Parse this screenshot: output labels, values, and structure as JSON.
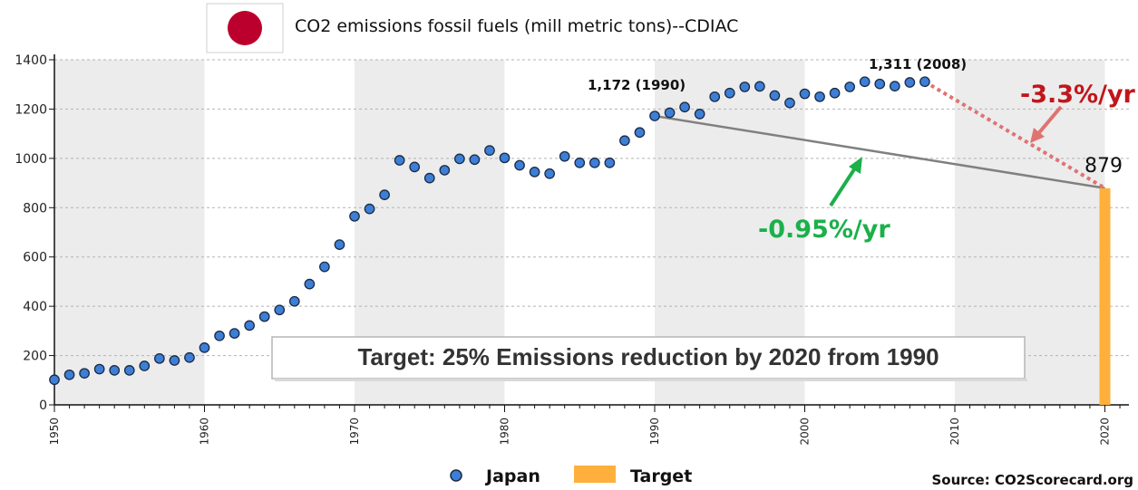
{
  "title": "CO2 emissions fossil fuels (mill metric tons)--CDIAC",
  "source": "Source: CO2Scorecard.org",
  "target_box": "Target: 25% Emissions reduction by 2020 from 1990",
  "annotations": {
    "peak_1990": "1,172 (1990)",
    "peak_2008": "1,311 (2008)",
    "target_value": "879",
    "rate_red": "-3.3%/yr",
    "rate_green": "-0.95%/yr"
  },
  "colors": {
    "flag_red": "#bc002d",
    "japan_point": "#3d7fd6",
    "target_bar": "#ffaf3c",
    "red_line": "#e07272",
    "gray_line": "#808080",
    "green_arrow": "#1bb04a",
    "red_text": "#c0161c",
    "band": "#ececec"
  },
  "icons": {
    "flag": "japan-flag-icon"
  },
  "chart_data": {
    "type": "scatter",
    "xlim": [
      1950,
      2021
    ],
    "ylim": [
      0,
      1400
    ],
    "yticks": [
      "0",
      "200",
      "400",
      "600",
      "800",
      "1000",
      "1200",
      "1400"
    ],
    "xticks": [
      "1950",
      "1960",
      "1970",
      "1980",
      "1990",
      "2000",
      "2010",
      "2020"
    ],
    "grid": "horizontal dashed",
    "legend": "bottom-center",
    "series": [
      {
        "name": "Japan",
        "x": [
          1950,
          1951,
          1952,
          1953,
          1954,
          1955,
          1956,
          1957,
          1958,
          1959,
          1960,
          1961,
          1962,
          1963,
          1964,
          1965,
          1966,
          1967,
          1968,
          1969,
          1970,
          1971,
          1972,
          1973,
          1974,
          1975,
          1976,
          1977,
          1978,
          1979,
          1980,
          1981,
          1982,
          1983,
          1984,
          1985,
          1986,
          1987,
          1988,
          1989,
          1990,
          1991,
          1992,
          1993,
          1994,
          1995,
          1996,
          1997,
          1998,
          1999,
          2000,
          2001,
          2002,
          2003,
          2004,
          2005,
          2006,
          2007,
          2008
        ],
        "y": [
          102,
          122,
          128,
          145,
          140,
          140,
          158,
          188,
          180,
          192,
          232,
          280,
          290,
          322,
          358,
          385,
          420,
          490,
          560,
          650,
          765,
          795,
          852,
          992,
          965,
          920,
          952,
          998,
          995,
          1032,
          1002,
          972,
          945,
          938,
          1008,
          982,
          982,
          982,
          1072,
          1105,
          1172,
          1185,
          1208,
          1180,
          1250,
          1265,
          1290,
          1292,
          1255,
          1225,
          1262,
          1250,
          1265,
          1290,
          1311,
          1302,
          1293,
          1308,
          1311
        ]
      },
      {
        "name": "Target",
        "x": [
          2020
        ],
        "y": [
          879
        ]
      }
    ],
    "trend_lines": [
      {
        "from": [
          1990,
          1172
        ],
        "to": [
          2020,
          879
        ]
      },
      {
        "from": [
          2008,
          1311
        ],
        "to": [
          2020,
          879
        ]
      }
    ]
  }
}
